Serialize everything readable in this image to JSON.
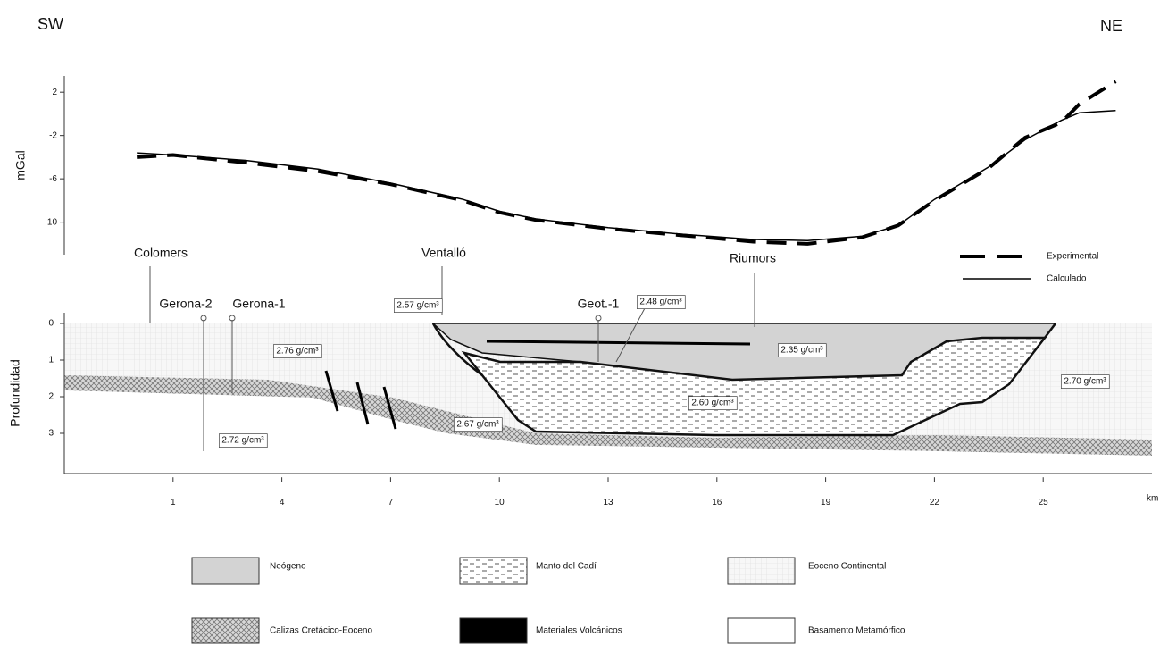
{
  "orientation": {
    "left": "SW",
    "right": "NE"
  },
  "chart_data": [
    {
      "type": "line",
      "ylabel": "mGal",
      "ylim": [
        -13,
        3.5
      ],
      "yticks": [
        2,
        -2,
        -6,
        -10
      ],
      "xlim": [
        -2,
        28
      ],
      "x": [
        0,
        1,
        3,
        5,
        7,
        9,
        10,
        11,
        13,
        15,
        17,
        18.5,
        20,
        21,
        22,
        23.5,
        24.5,
        25.5,
        26,
        27
      ],
      "legend": "right",
      "series": [
        {
          "name": "Experimental",
          "color": "#000000",
          "dash": true,
          "values": [
            -4.0,
            -3.8,
            -4.5,
            -5.3,
            -6.5,
            -8.0,
            -9.1,
            -9.8,
            -10.6,
            -11.2,
            -11.8,
            -12.0,
            -11.4,
            -10.3,
            -8.0,
            -5.0,
            -2.2,
            -0.8,
            0.9,
            3.0
          ]
        },
        {
          "name": "Calculado",
          "color": "#000000",
          "dash": false,
          "values": [
            -3.6,
            -3.8,
            -4.3,
            -5.1,
            -6.4,
            -7.9,
            -9.0,
            -9.7,
            -10.5,
            -11.1,
            -11.6,
            -11.7,
            -11.3,
            -10.3,
            -7.9,
            -4.9,
            -2.4,
            -0.6,
            0.1,
            0.3
          ]
        }
      ]
    },
    {
      "type": "section",
      "ylabel": "Profundidad",
      "ylim": [
        0,
        4.2
      ],
      "yticks": [
        0,
        1,
        2,
        3
      ],
      "xlim": [
        -2,
        28
      ],
      "xticks": [
        1,
        4,
        7,
        10,
        13,
        16,
        19,
        22,
        25
      ],
      "xunit": "km",
      "wells": [
        "Colomers",
        "Gerona-2",
        "Gerona-1",
        "Ventalló",
        "Geot.-1",
        "Riumors"
      ],
      "densities": [
        "2.57 g/cm³",
        "2.48 g/cm³",
        "2.76 g/cm³",
        "2.35 g/cm³",
        "2.60 g/cm³",
        "2.70 g/cm³",
        "2.67 g/cm³",
        "2.72 g/cm³"
      ],
      "units": [
        "Neógeno",
        "Manto del Cadí",
        "Eoceno Continental",
        "Calizas Cretácico-Eoceno",
        "Materiales Volcánicos",
        "Basamento Metamórfico"
      ]
    }
  ]
}
